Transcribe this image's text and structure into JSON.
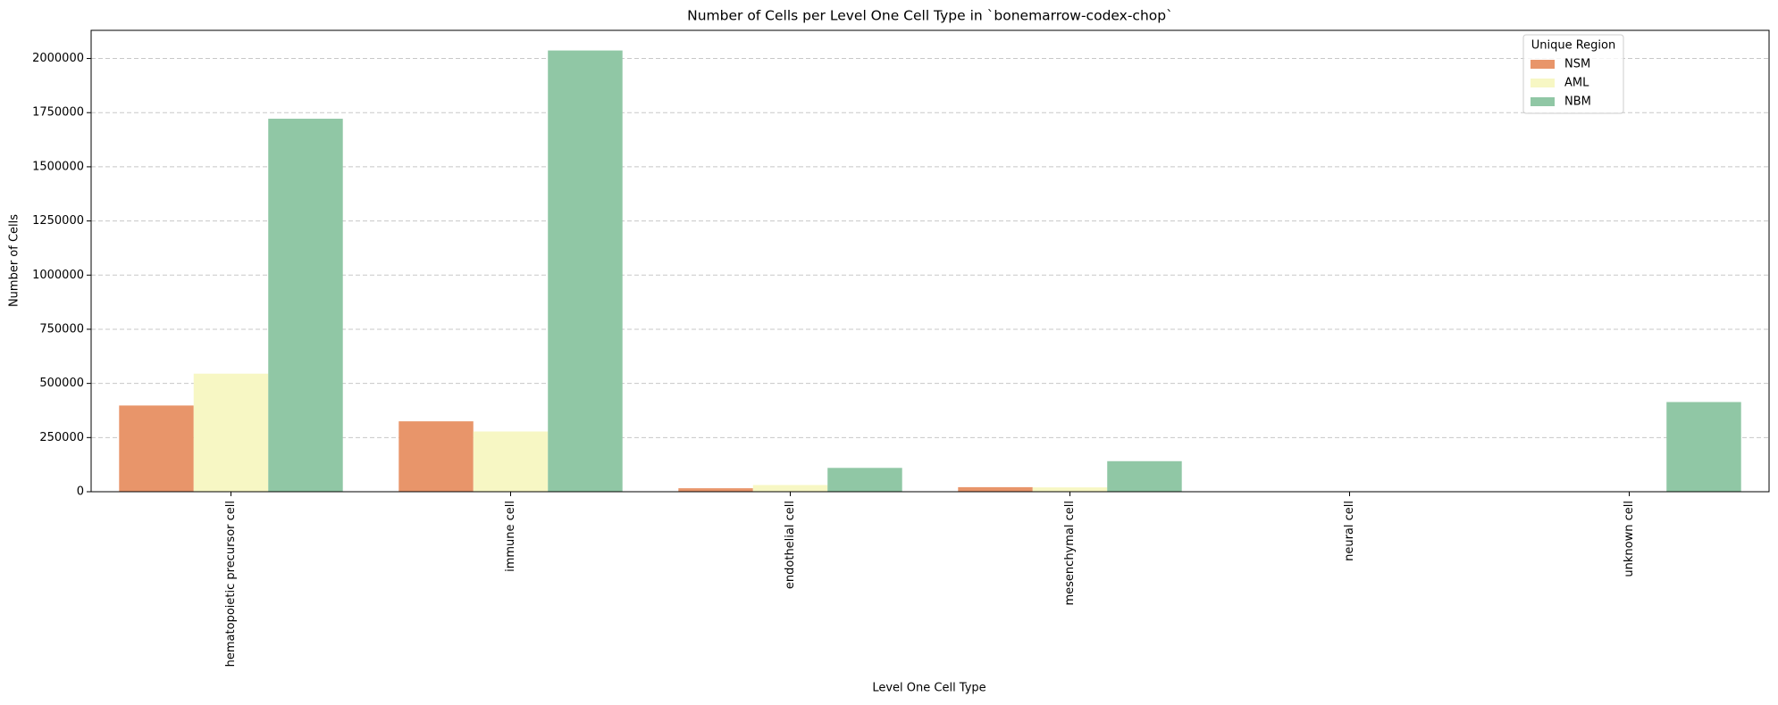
{
  "chart_data": {
    "type": "bar",
    "title": "Number of Cells per Level One Cell Type in `bonemarrow-codex-chop`",
    "x_label": "Level One Cell Type",
    "y_label": "Number of Cells",
    "categories": [
      "hematopoietic precursor cell",
      "immune cell",
      "endothelial cell",
      "mesenchymal cell",
      "neural cell",
      "unknown cell"
    ],
    "series": [
      {
        "name": "NSM",
        "color": "#e8956a",
        "values": [
          398000,
          325000,
          16000,
          21000,
          0,
          0
        ]
      },
      {
        "name": "AML",
        "color": "#f7f7c4",
        "values": [
          545000,
          278000,
          31000,
          20000,
          0,
          0
        ]
      },
      {
        "name": "NBM",
        "color": "#90c7a5",
        "values": [
          1722000,
          2037000,
          110000,
          141000,
          0,
          414000
        ]
      }
    ],
    "legend_title": "Unique Region",
    "legend": "upper right",
    "ylim": [
      0,
      2130000
    ],
    "yticks": [
      0,
      250000,
      500000,
      750000,
      1000000,
      1250000,
      1500000,
      1750000,
      2000000
    ],
    "grid": true
  }
}
